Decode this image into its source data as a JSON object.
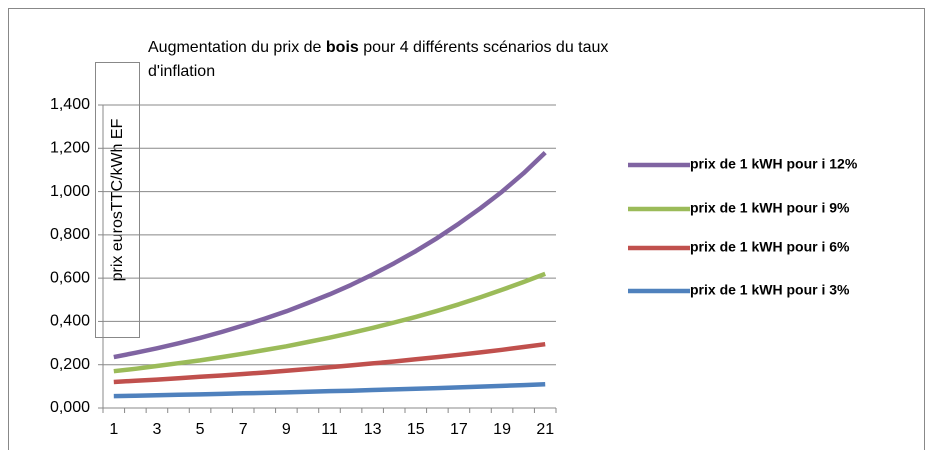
{
  "chart_data": {
    "type": "line",
    "title": [
      "Augmentation du prix de ",
      "bois",
      " pour 4 différents scénarios du taux",
      "d'inflation"
    ],
    "y_label": "prix eurosTTC/kWh EF",
    "categories": [
      1,
      null,
      3,
      null,
      5,
      null,
      7,
      null,
      9,
      null,
      11,
      null,
      13,
      null,
      15,
      null,
      17,
      null,
      19,
      null,
      21
    ],
    "series": [
      {
        "name": "prix de 1 kWH pour i 12%",
        "color": "#8064a2",
        "values": [
          0.235,
          0.255,
          0.276,
          0.299,
          0.324,
          0.351,
          0.381,
          0.413,
          0.447,
          0.485,
          0.525,
          0.569,
          0.617,
          0.669,
          0.725,
          0.786,
          0.852,
          0.923,
          1.0,
          1.085,
          1.18
        ]
      },
      {
        "name": "prix de 1 kWH pour i 9%",
        "color": "#9bbb59",
        "values": [
          0.17,
          0.181,
          0.194,
          0.207,
          0.22,
          0.235,
          0.251,
          0.268,
          0.285,
          0.305,
          0.325,
          0.347,
          0.37,
          0.395,
          0.421,
          0.449,
          0.479,
          0.512,
          0.546,
          0.582,
          0.62
        ]
      },
      {
        "name": "prix de 1 kWH pour i 6%",
        "color": "#c0504d",
        "values": [
          0.12,
          0.126,
          0.131,
          0.137,
          0.144,
          0.15,
          0.157,
          0.164,
          0.172,
          0.18,
          0.188,
          0.197,
          0.206,
          0.215,
          0.225,
          0.235,
          0.246,
          0.257,
          0.269,
          0.282,
          0.295
        ]
      },
      {
        "name": "prix de 1 kWH pour i 3%",
        "color": "#4f81bd",
        "values": [
          0.055,
          0.057,
          0.059,
          0.061,
          0.063,
          0.065,
          0.068,
          0.07,
          0.072,
          0.075,
          0.078,
          0.08,
          0.083,
          0.086,
          0.089,
          0.092,
          0.095,
          0.099,
          0.102,
          0.106,
          0.11
        ]
      }
    ],
    "ylim": [
      0,
      1.4
    ],
    "yticks": [
      {
        "value": 0,
        "label": "0,000"
      },
      {
        "value": 0.2,
        "label": "0,200"
      },
      {
        "value": 0.4,
        "label": "0,400"
      },
      {
        "value": 0.6,
        "label": "0,600"
      },
      {
        "value": 0.8,
        "label": "0,800"
      },
      {
        "value": 1.0,
        "label": "1,000"
      },
      {
        "value": 1.2,
        "label": "1,200"
      },
      {
        "value": 1.4,
        "label": "1,400"
      }
    ],
    "grid": true,
    "legend": "right"
  }
}
